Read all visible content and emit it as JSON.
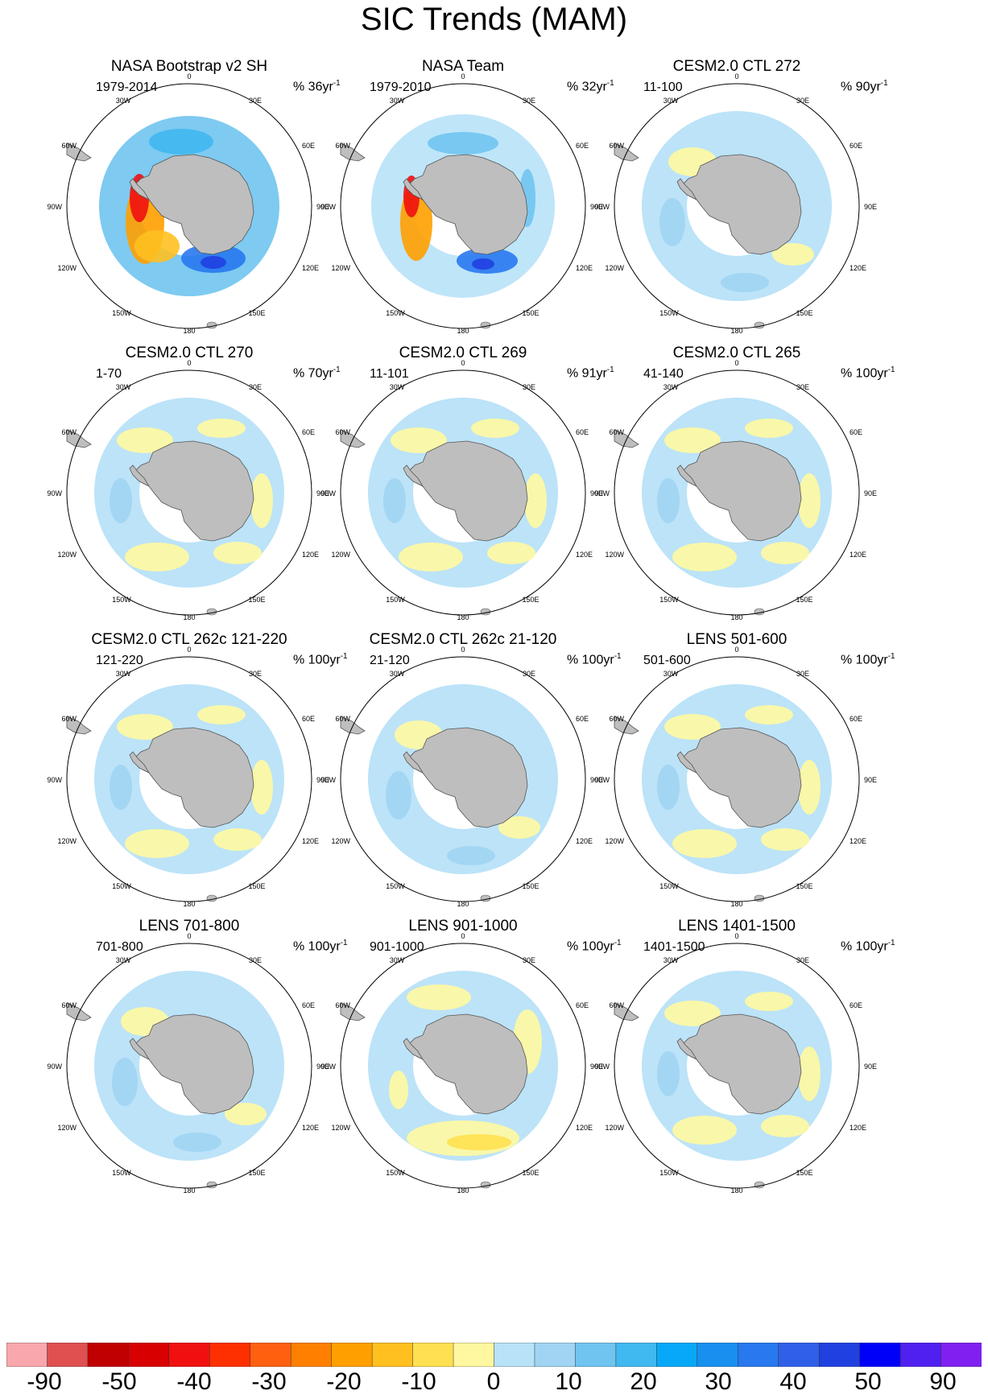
{
  "title": "SIC Trends (MAM)",
  "units_prefix": "%",
  "units_suffix": "yr",
  "units_exponent": "-1",
  "panels": [
    {
      "title": "NASA Bootstrap v2 SH",
      "period": "1979-2014",
      "units_scale": "36",
      "pattern": "obs1"
    },
    {
      "title": "NASA Team",
      "period": "1979-2010",
      "units_scale": "32",
      "pattern": "obs2"
    },
    {
      "title": "CESM2.0 CTL 272",
      "period": "11-100",
      "units_scale": "90",
      "pattern": "blue"
    },
    {
      "title": "CESM2.0 CTL 270",
      "period": "1-70",
      "units_scale": "70",
      "pattern": "mixed"
    },
    {
      "title": "CESM2.0 CTL 269",
      "period": "11-101",
      "units_scale": "91",
      "pattern": "mixed"
    },
    {
      "title": "CESM2.0 CTL 265",
      "period": "41-140",
      "units_scale": "100",
      "pattern": "mixed"
    },
    {
      "title": "CESM2.0 CTL 262c 121-220",
      "period": "121-220",
      "units_scale": "100",
      "pattern": "mixed"
    },
    {
      "title": "CESM2.0 CTL 262c 21-120",
      "period": "21-120",
      "units_scale": "100",
      "pattern": "blue"
    },
    {
      "title": "LENS 501-600",
      "period": "501-600",
      "units_scale": "100",
      "pattern": "mixed"
    },
    {
      "title": "LENS 701-800",
      "period": "701-800",
      "units_scale": "100",
      "pattern": "blue"
    },
    {
      "title": "LENS 901-1000",
      "period": "901-1000",
      "units_scale": "100",
      "pattern": "yellow"
    },
    {
      "title": "LENS 1401-1500",
      "period": "1401-1500",
      "units_scale": "100",
      "pattern": "mixed"
    }
  ],
  "longitude_labels": [
    "0",
    "30E",
    "60E",
    "90E",
    "120E",
    "150E",
    "180",
    "150W",
    "120W",
    "90W",
    "60W",
    "30W"
  ],
  "colorbar": {
    "colors": [
      "#f8a8ac",
      "#e05050",
      "#c00000",
      "#d80000",
      "#f01010",
      "#ff3000",
      "#ff6010",
      "#ff8000",
      "#ffa000",
      "#ffc020",
      "#ffe050",
      "#fff8a0",
      "#b8e2f8",
      "#a0d4f2",
      "#70c4f0",
      "#40b8f0",
      "#08a8f8",
      "#1890f0",
      "#2878f0",
      "#3060e8",
      "#2040e0",
      "#0000f8",
      "#5020f0",
      "#8020f0"
    ],
    "labels": [
      "-90",
      "-50",
      "-40",
      "-30",
      "-20",
      "-10",
      "0",
      "10",
      "20",
      "30",
      "40",
      "50",
      "90"
    ]
  }
}
